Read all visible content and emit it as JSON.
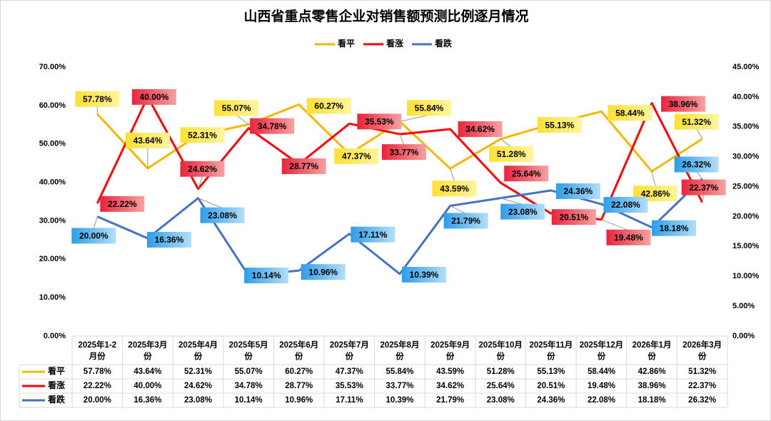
{
  "chart_data": {
    "type": "line",
    "title": "山西省重点零售企业对销售额预测比例逐月情况",
    "categories": [
      "2025年1-2月份",
      "2025年3月份",
      "2025年4月份",
      "2025年5月份",
      "2025年6月份",
      "2025年7月份",
      "2025年8月份",
      "2025年9月份",
      "2025年10月份",
      "2025年11月份",
      "2025年12月份",
      "2026年1月份",
      "2026年3月份"
    ],
    "category_lines": [
      [
        "2025年1-2",
        "月份"
      ],
      [
        "2025年3月",
        "份"
      ],
      [
        "2025年4月",
        "份"
      ],
      [
        "2025年5月",
        "份"
      ],
      [
        "2025年6月",
        "份"
      ],
      [
        "2025年7月",
        "份"
      ],
      [
        "2025年8月",
        "份"
      ],
      [
        "2025年9月",
        "份"
      ],
      [
        "2025年10月",
        "份"
      ],
      [
        "2025年11月",
        "份"
      ],
      [
        "2025年12月",
        "份"
      ],
      [
        "2026年1月",
        "份"
      ],
      [
        "2026年3月",
        "份"
      ]
    ],
    "series": [
      {
        "name": "看平",
        "axis": "left",
        "color": "#f5b800",
        "label_color": "#ffe033",
        "values": [
          57.78,
          43.64,
          52.31,
          55.07,
          60.27,
          47.37,
          55.84,
          43.59,
          51.28,
          55.13,
          58.44,
          42.86,
          51.32
        ]
      },
      {
        "name": "看涨",
        "axis": "right",
        "color": "#ff0000",
        "label_color": "#e8243c",
        "values": [
          22.22,
          40.0,
          24.62,
          34.78,
          28.77,
          35.53,
          33.77,
          34.62,
          25.64,
          20.51,
          19.48,
          38.96,
          22.37
        ]
      },
      {
        "name": "看跌",
        "axis": "right",
        "color": "#4472c4",
        "label_color": "#2f9de8",
        "values": [
          20.0,
          16.36,
          23.08,
          10.14,
          10.96,
          17.11,
          10.39,
          21.79,
          23.08,
          24.36,
          22.08,
          18.18,
          26.32
        ]
      }
    ],
    "y_left": {
      "range": [
        0,
        70
      ],
      "step": 10,
      "format": "percent"
    },
    "y_right": {
      "range": [
        0,
        45
      ],
      "step": 5,
      "format": "percent"
    },
    "legend_position": "top",
    "data_table": true,
    "grid": false
  }
}
